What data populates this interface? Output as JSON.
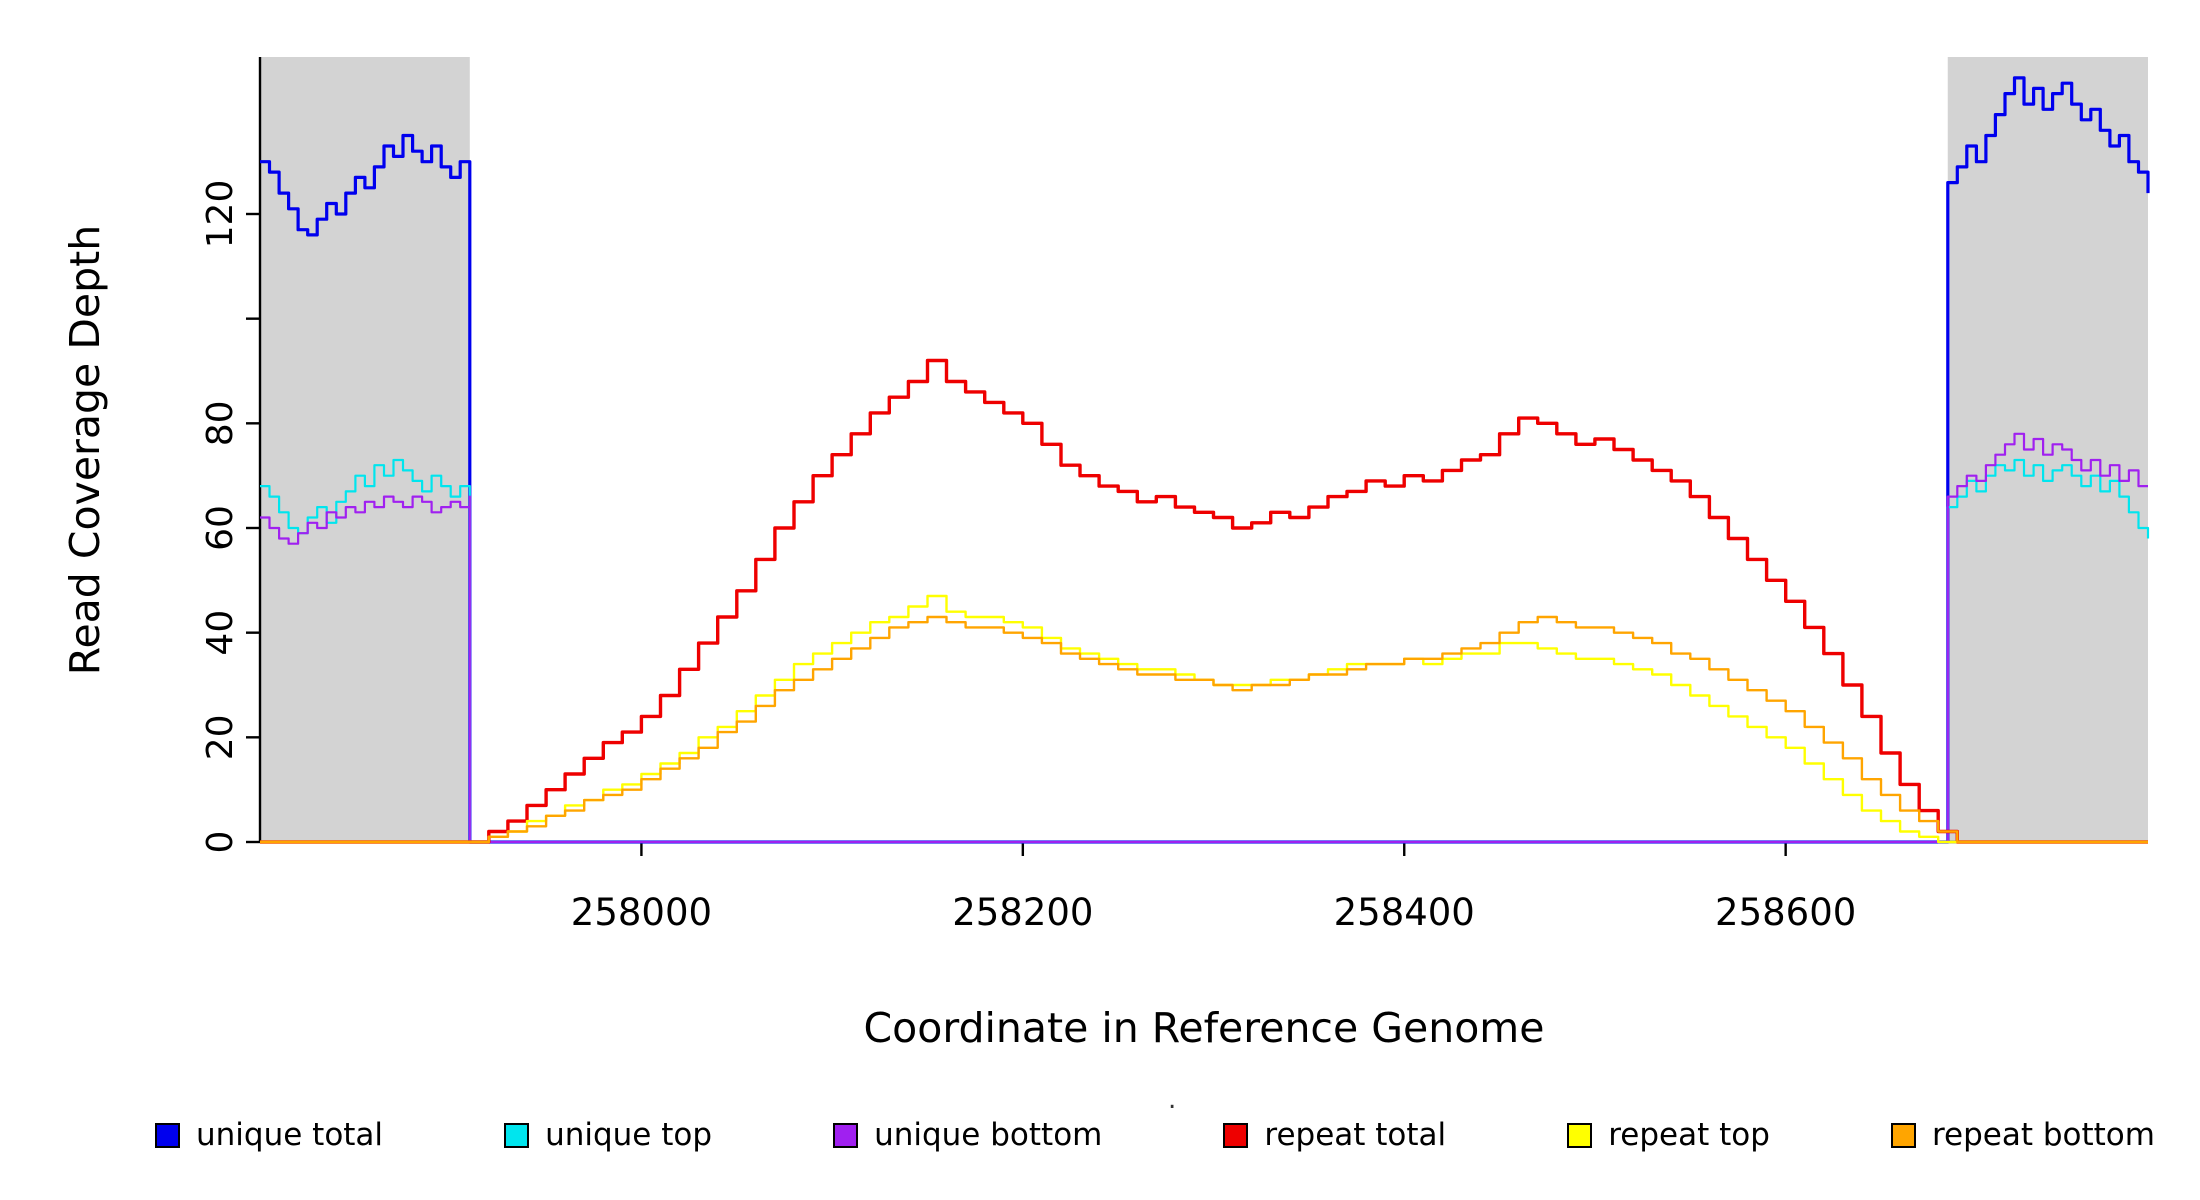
{
  "stray_dot": ".",
  "legend": {
    "items": [
      {
        "label": "unique total",
        "color": "#0000EE"
      },
      {
        "label": "unique top",
        "color": "#00E5EE"
      },
      {
        "label": "unique bottom",
        "color": "#A020F0"
      },
      {
        "label": "repeat total",
        "color": "#EE0000"
      },
      {
        "label": "repeat top",
        "color": "#FFFF00"
      },
      {
        "label": "repeat bottom",
        "color": "#FFA500"
      }
    ]
  },
  "chart_data": {
    "type": "line",
    "title": "",
    "xlabel": "Coordinate in Reference Genome",
    "ylabel": "Read Coverage Depth",
    "xlim": [
      257800,
      258790
    ],
    "ylim": [
      0,
      150
    ],
    "x_ticks": [
      258000,
      258200,
      258400,
      258600
    ],
    "y_ticks": [
      0,
      20,
      40,
      60,
      80,
      100,
      120
    ],
    "y_tick_labels": [
      "0",
      "20",
      "40",
      "60",
      "80",
      "",
      "120"
    ],
    "grid": false,
    "legend_position": "bottom",
    "shaded_region_color": "#D3D3D3",
    "shaded_regions": [
      [
        257800,
        257910
      ],
      [
        258685,
        258790
      ]
    ],
    "series": [
      {
        "name": "unique total",
        "color": "#0000EE",
        "lw": 3.2,
        "segments": [
          {
            "x0": 257800,
            "dx": 5,
            "y": [
              130,
              128,
              124,
              121,
              117,
              116,
              119,
              122,
              120,
              124,
              127,
              125,
              129,
              133,
              131,
              135,
              132,
              130,
              133,
              129,
              127,
              130,
              126
            ]
          },
          {
            "x0": 257910,
            "dx": 775,
            "y": [
              0,
              0
            ]
          },
          {
            "x0": 258685,
            "dx": 5,
            "y": [
              126,
              129,
              133,
              130,
              135,
              139,
              143,
              146,
              141,
              144,
              140,
              143,
              145,
              141,
              138,
              140,
              136,
              133,
              135,
              130,
              128,
              124
            ]
          }
        ]
      },
      {
        "name": "unique top",
        "color": "#00E5EE",
        "lw": 2.2,
        "segments": [
          {
            "x0": 257800,
            "dx": 5,
            "y": [
              68,
              66,
              63,
              60,
              59,
              62,
              64,
              61,
              65,
              67,
              70,
              68,
              72,
              70,
              73,
              71,
              69,
              67,
              70,
              68,
              66,
              68,
              65
            ]
          },
          {
            "x0": 257910,
            "dx": 775,
            "y": [
              0,
              0
            ]
          },
          {
            "x0": 258685,
            "dx": 5,
            "y": [
              64,
              66,
              69,
              67,
              70,
              72,
              71,
              73,
              70,
              72,
              69,
              71,
              72,
              70,
              68,
              70,
              67,
              69,
              66,
              63,
              60,
              58
            ]
          }
        ]
      },
      {
        "name": "unique bottom",
        "color": "#A020F0",
        "lw": 2.2,
        "segments": [
          {
            "x0": 257800,
            "dx": 5,
            "y": [
              62,
              60,
              58,
              57,
              59,
              61,
              60,
              63,
              62,
              64,
              63,
              65,
              64,
              66,
              65,
              64,
              66,
              65,
              63,
              64,
              65,
              64,
              66
            ]
          },
          {
            "x0": 257910,
            "dx": 775,
            "y": [
              0,
              0
            ]
          },
          {
            "x0": 258685,
            "dx": 5,
            "y": [
              66,
              68,
              70,
              69,
              72,
              74,
              76,
              78,
              75,
              77,
              74,
              76,
              75,
              73,
              71,
              73,
              70,
              72,
              69,
              71,
              68,
              68
            ]
          }
        ]
      },
      {
        "name": "repeat total",
        "color": "#EE0000",
        "lw": 3.4,
        "segments": [
          {
            "x0": 257800,
            "dx": 110,
            "y": [
              0,
              0
            ]
          },
          {
            "x0": 257910,
            "dx": 10,
            "y": [
              0,
              2,
              4,
              7,
              10,
              13,
              16,
              19,
              21,
              24,
              28,
              33,
              38,
              43,
              48,
              54,
              60,
              65,
              70,
              74,
              78,
              82,
              85,
              88,
              92,
              88,
              86,
              84,
              82,
              80,
              76,
              72,
              70,
              68,
              67,
              65,
              66,
              64,
              63,
              62,
              60,
              61,
              63,
              62,
              64,
              66,
              67,
              69,
              68,
              70,
              69,
              71,
              73,
              74,
              78,
              81,
              80,
              78,
              76,
              77,
              75,
              73,
              71,
              69,
              66,
              62,
              58,
              54,
              50,
              46,
              41,
              36,
              30,
              24,
              17,
              11,
              6,
              2,
              0
            ]
          },
          {
            "x0": 258690,
            "dx": 100,
            "y": [
              0,
              0
            ]
          }
        ]
      },
      {
        "name": "repeat top",
        "color": "#FFFF00",
        "lw": 2.4,
        "segments": [
          {
            "x0": 257800,
            "dx": 110,
            "y": [
              0,
              0
            ]
          },
          {
            "x0": 257910,
            "dx": 10,
            "y": [
              0,
              1,
              2,
              4,
              5,
              7,
              8,
              10,
              11,
              13,
              15,
              17,
              20,
              22,
              25,
              28,
              31,
              34,
              36,
              38,
              40,
              42,
              43,
              45,
              47,
              44,
              43,
              43,
              42,
              41,
              39,
              37,
              36,
              35,
              34,
              33,
              33,
              32,
              31,
              30,
              30,
              30,
              31,
              31,
              32,
              33,
              34,
              34,
              34,
              35,
              34,
              35,
              36,
              36,
              38,
              38,
              37,
              36,
              35,
              35,
              34,
              33,
              32,
              30,
              28,
              26,
              24,
              22,
              20,
              18,
              15,
              12,
              9,
              6,
              4,
              2,
              1,
              0,
              0
            ]
          },
          {
            "x0": 258690,
            "dx": 100,
            "y": [
              0,
              0
            ]
          }
        ]
      },
      {
        "name": "repeat bottom",
        "color": "#FFA500",
        "lw": 2.4,
        "segments": [
          {
            "x0": 257800,
            "dx": 110,
            "y": [
              0,
              0
            ]
          },
          {
            "x0": 257910,
            "dx": 10,
            "y": [
              0,
              1,
              2,
              3,
              5,
              6,
              8,
              9,
              10,
              12,
              14,
              16,
              18,
              21,
              23,
              26,
              29,
              31,
              33,
              35,
              37,
              39,
              41,
              42,
              43,
              42,
              41,
              41,
              40,
              39,
              38,
              36,
              35,
              34,
              33,
              32,
              32,
              31,
              31,
              30,
              29,
              30,
              30,
              31,
              32,
              32,
              33,
              34,
              34,
              35,
              35,
              36,
              37,
              38,
              40,
              42,
              43,
              42,
              41,
              41,
              40,
              39,
              38,
              36,
              35,
              33,
              31,
              29,
              27,
              25,
              22,
              19,
              16,
              12,
              9,
              6,
              4,
              2,
              0
            ]
          },
          {
            "x0": 258690,
            "dx": 100,
            "y": [
              0,
              0
            ]
          }
        ]
      }
    ]
  }
}
